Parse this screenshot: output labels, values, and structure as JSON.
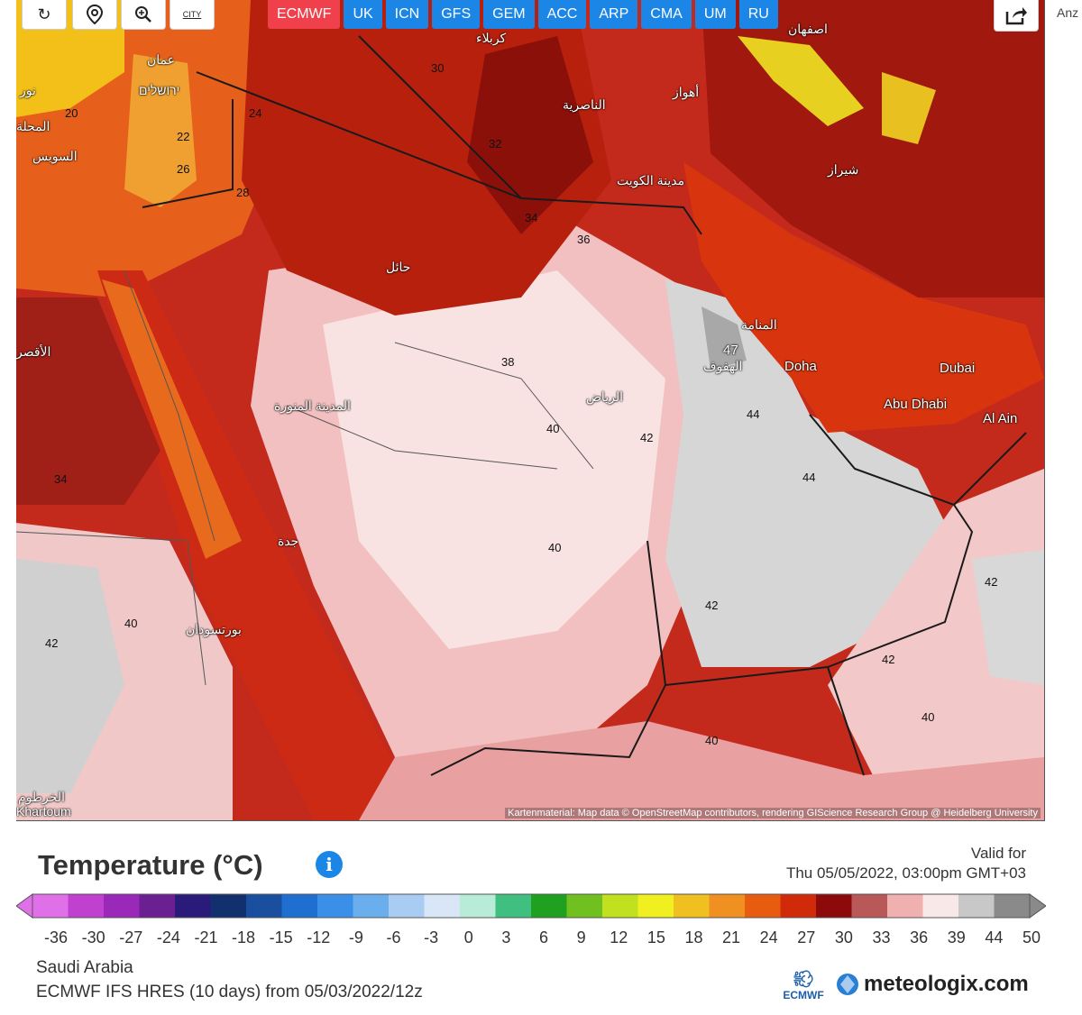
{
  "controls": {
    "reload_icon": "reload-icon",
    "location_icon": "location-pin-icon",
    "zoom_icon": "zoom-icon",
    "city_label": "CITY"
  },
  "model_tabs": [
    "ECMWF",
    "UK",
    "ICN",
    "GFS",
    "GEM",
    "ACC",
    "ARP",
    "CMA",
    "UM",
    "RU"
  ],
  "active_model": "ECMWF",
  "side_text": "Anz",
  "map": {
    "attribution": "Kartenmaterial: Map data © OpenStreetMap contributors, rendering GIScience Research Group @ Heidelberg University",
    "place_labels": [
      "عمان",
      "ירושלים",
      "نور",
      "السويس",
      "المحلة",
      "الأقصر",
      "كربلاء",
      "الناصرية",
      "اصفهان",
      "أهواز",
      "مدينة الكويت",
      "شيراز",
      "حائل",
      "المنامة",
      "الهفوف",
      "Doha",
      "Dubai",
      "Abu Dhabi",
      "Al Ain",
      "الرياض",
      "المدينة المنورة",
      "جدة",
      "بورتسودان",
      "الخرطوم",
      "Khartoum"
    ],
    "temps": [
      "30",
      "24",
      "22",
      "20",
      "26",
      "28",
      "32",
      "34",
      "36",
      "38",
      "40",
      "42",
      "44",
      "47"
    ]
  },
  "legend": {
    "title": "Temperature (°C)",
    "valid_for_label": "Valid for",
    "valid_time": "Thu 05/05/2022, 03:00pm GMT+03",
    "ticks": [
      "-36",
      "-30",
      "-27",
      "-24",
      "-21",
      "-18",
      "-15",
      "-12",
      "-9",
      "-6",
      "-3",
      "0",
      "3",
      "6",
      "9",
      "12",
      "15",
      "18",
      "21",
      "24",
      "27",
      "30",
      "33",
      "36",
      "39",
      "44",
      "50"
    ],
    "colors": [
      "#e070e8",
      "#c040d0",
      "#9a28b8",
      "#6a2090",
      "#2a1a7a",
      "#12306e",
      "#1a4fa0",
      "#1f6fd0",
      "#3a8fe8",
      "#6aaeee",
      "#a8ccf2",
      "#d8e6f8",
      "#b8ecd8",
      "#40c080",
      "#20a020",
      "#70c020",
      "#c0e020",
      "#f0f020",
      "#f0c020",
      "#f09020",
      "#e85c10",
      "#d02a0a",
      "#8c0a0a",
      "#b85858",
      "#f0b0b0",
      "#f8e8e8",
      "#c8c8c8",
      "#8a8a8a"
    ]
  },
  "footer": {
    "region": "Saudi Arabia",
    "model_run": "ECMWF IFS HRES (10 days)  from 05/03/2022/12z",
    "ecmwf_logo": "ECMWF",
    "brand": "meteologix.com"
  }
}
